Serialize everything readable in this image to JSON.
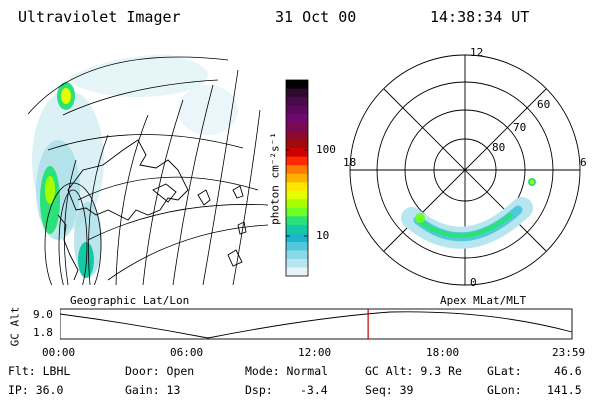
{
  "header": {
    "title": "Ultraviolet Imager",
    "date": "31 Oct 00",
    "time": "14:38:34 UT"
  },
  "colorbar": {
    "label": "photon cm⁻²s⁻¹",
    "ticks": [
      "100",
      "10"
    ],
    "colors": [
      "#000000",
      "#2d0a2d",
      "#4a0a4a",
      "#5a0a5a",
      "#6e0a6e",
      "#7a0a50",
      "#8a0a30",
      "#a00a0a",
      "#d00000",
      "#ff2a00",
      "#ff7a00",
      "#ffb000",
      "#ffe600",
      "#e6ff00",
      "#a6ff00",
      "#6cff26",
      "#2ce07a",
      "#16c9a6",
      "#1ab6c9",
      "#52c8dc",
      "#8ad8e8",
      "#b8e6f0",
      "#e6f4f8"
    ]
  },
  "geo_panel": {
    "label": "Geographic Lat/Lon"
  },
  "polar_panel": {
    "label": "Apex MLat/MLT",
    "mlt_labels": {
      "top": "12",
      "left": "18",
      "right": "6",
      "bottom": "0"
    },
    "lat_labels": [
      "60",
      "70",
      "80"
    ]
  },
  "altitude_plot": {
    "ylabel": "GC Alt",
    "yticks": [
      "9.0",
      "1.8"
    ],
    "xticks": [
      "00:00",
      "06:00",
      "12:00",
      "18:00",
      "23:59"
    ],
    "current_time_fraction": 0.6018
  },
  "footer": {
    "filter": "Flt: LBHL",
    "door": "Door: Open",
    "mode": "Mode: Normal",
    "gc_alt": "GC Alt: 9.3 Re",
    "glat_label": "GLat:",
    "glat_value": "46.6",
    "ip": "IP: 36.0",
    "gain": "Gain: 13",
    "dsp_label": "Dsp:",
    "dsp_value": "-3.4",
    "seq": "Seq: 39",
    "glon_label": "GLon:",
    "glon_value": "141.5"
  }
}
